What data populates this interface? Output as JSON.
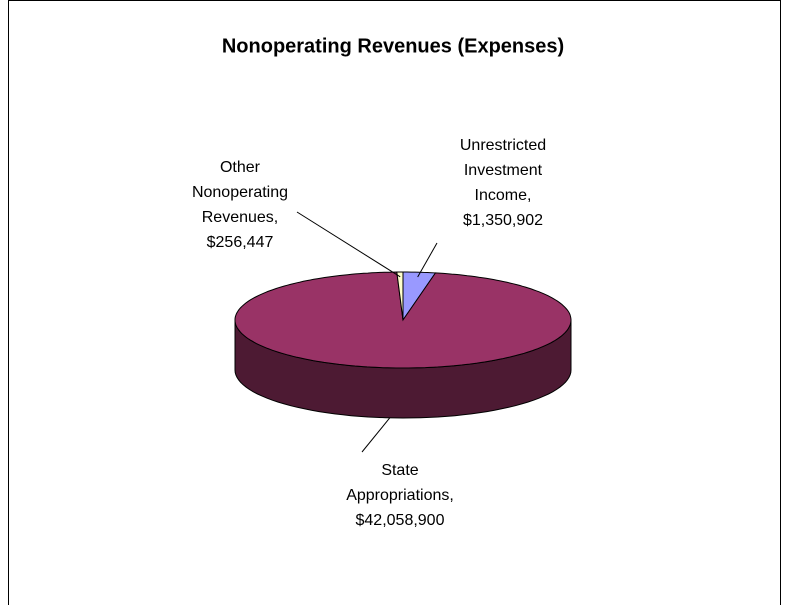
{
  "chart_data": {
    "type": "pie",
    "title": "Nonoperating Revenues (Expenses)",
    "categories": [
      "Unrestricted Investment Income,",
      "State Appropriations,",
      "Other Nonoperating Revenues,"
    ],
    "values": [
      1350902,
      42058900,
      256447
    ],
    "value_labels": [
      "$1,350,902",
      "$42,058,900",
      "$256,447"
    ],
    "colors": [
      "#9999ff",
      "#993366",
      "#ffffcc"
    ],
    "side_colors": [
      "#4d4d80",
      "#4d1a33",
      "#80806a"
    ]
  }
}
